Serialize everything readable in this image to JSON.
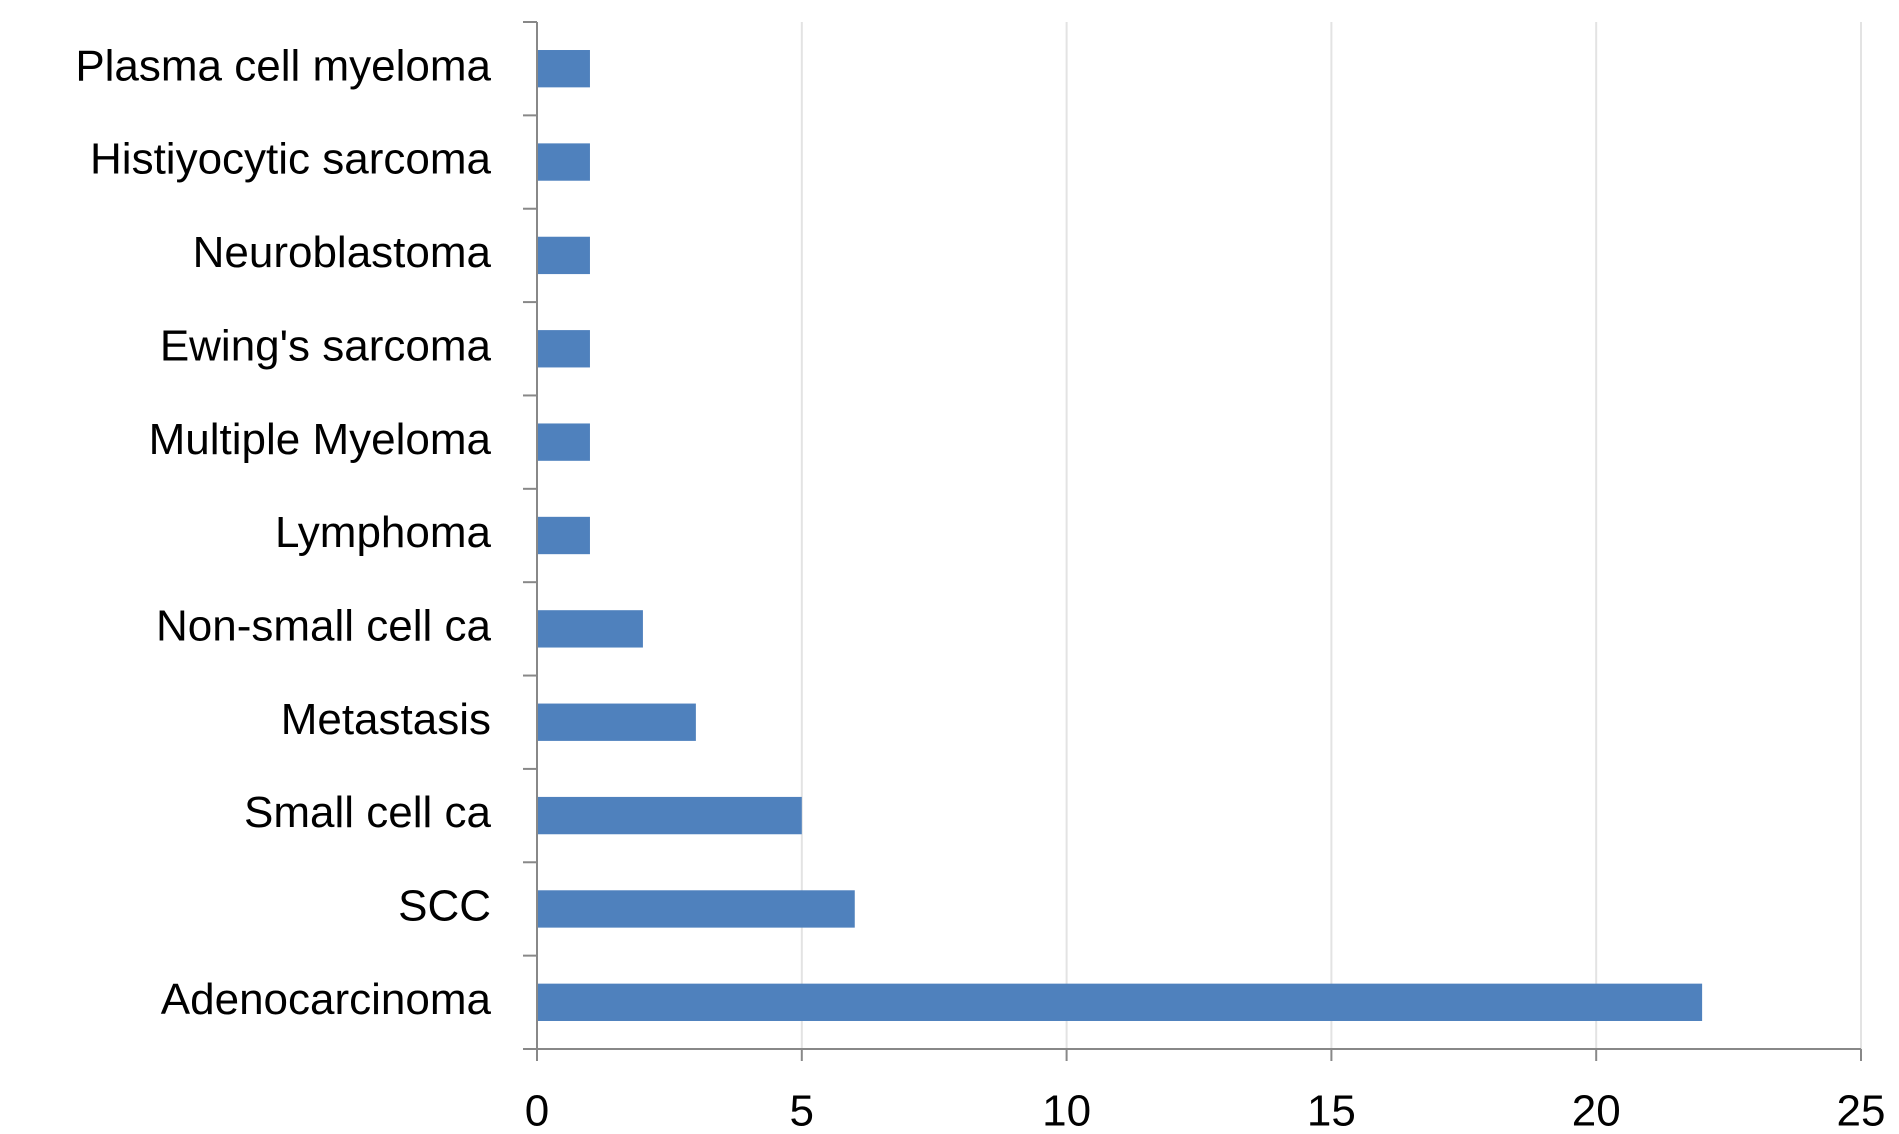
{
  "chart_data": {
    "type": "hbar",
    "categories": [
      "Adenocarcinoma",
      "SCC",
      "Small cell ca",
      "Metastasis",
      "Non-small cell ca",
      "Lymphoma",
      "Multiple Myeloma",
      "Ewing's sarcoma",
      "Neuroblastoma",
      "Histiyocytic sarcoma",
      "Plasma cell myeloma"
    ],
    "values": [
      22,
      6,
      5,
      3,
      2,
      1,
      1,
      1,
      1,
      1,
      1
    ],
    "color": "#4f81bd",
    "xlim": [
      0,
      25
    ],
    "xticks": [
      0,
      5,
      10,
      15,
      20,
      25
    ],
    "grid": true
  }
}
